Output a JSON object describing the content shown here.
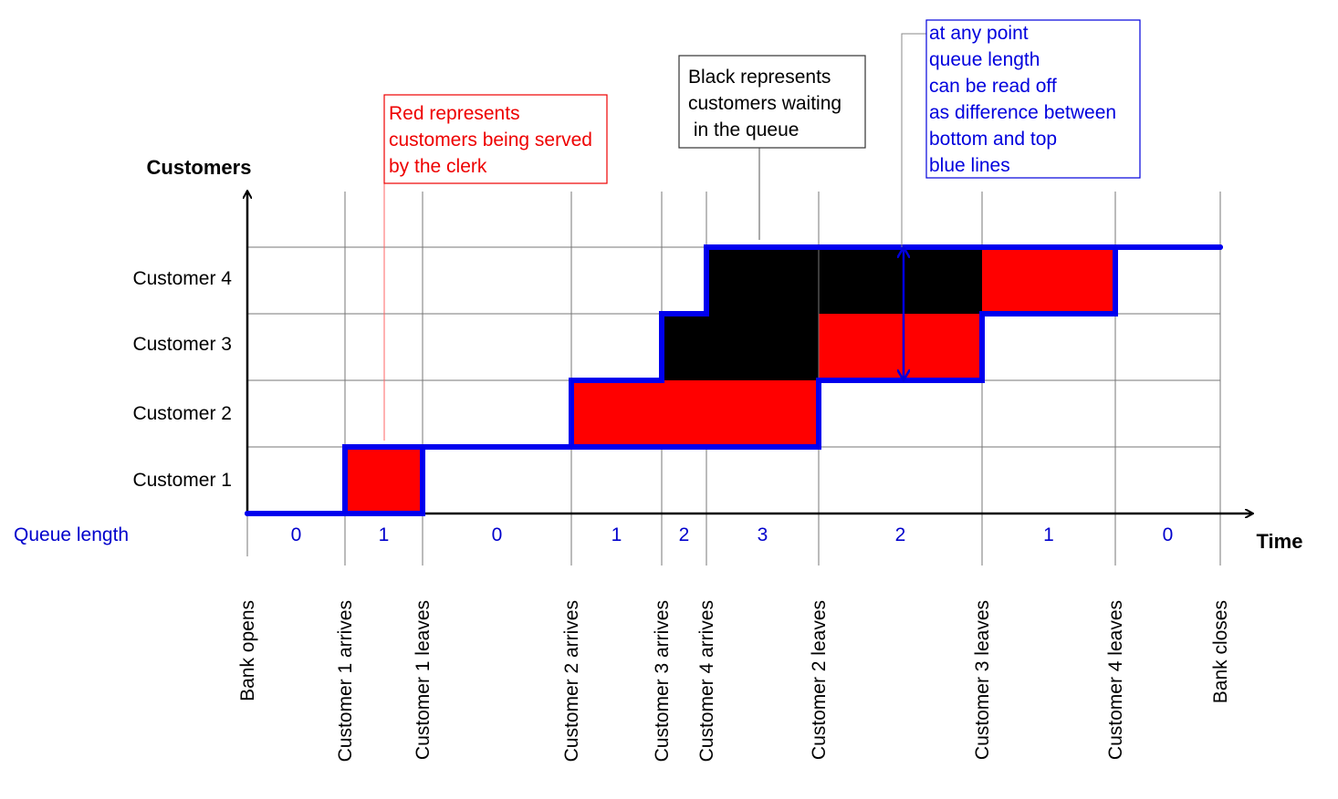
{
  "axes": {
    "y_label": "Customers",
    "x_label": "Time",
    "queue_label": "Queue length"
  },
  "rows": [
    "Customer 1",
    "Customer 2",
    "Customer 3",
    "Customer 4"
  ],
  "queue_lengths": [
    "0",
    "1",
    "0",
    "1",
    "2",
    "3",
    "2",
    "1",
    "0"
  ],
  "events": [
    "Bank opens",
    "Customer 1 arrives",
    "Customer 1 leaves",
    "Customer 2 arrives",
    "Customer 3 arrives",
    "Customer 4 arrives",
    "Customer 2 leaves",
    "Customer 3 leaves",
    "Customer 4 leaves",
    "Bank closes"
  ],
  "annotations": {
    "red": [
      "Red represents",
      "customers being served",
      "by the clerk"
    ],
    "black": [
      "Black represents",
      "customers waiting",
      " in the queue"
    ],
    "blue": [
      "at any point",
      "queue length",
      "can be read off",
      "as difference between",
      "bottom and top",
      "blue lines"
    ]
  }
}
